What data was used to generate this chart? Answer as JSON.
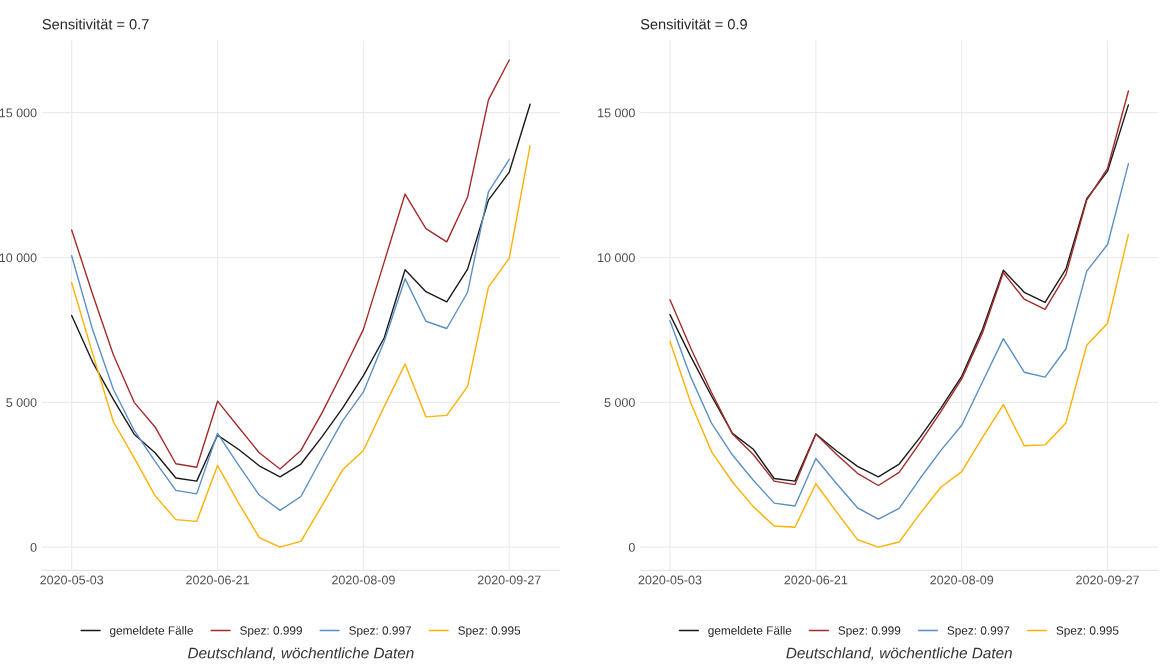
{
  "chart_data": [
    {
      "type": "line",
      "title": "Sensitivität = 0.7",
      "x": [
        "2020-05-03",
        "2020-05-10",
        "2020-05-17",
        "2020-05-24",
        "2020-05-31",
        "2020-06-07",
        "2020-06-14",
        "2020-06-21",
        "2020-06-28",
        "2020-07-05",
        "2020-07-12",
        "2020-07-19",
        "2020-07-26",
        "2020-08-02",
        "2020-08-09",
        "2020-08-16",
        "2020-08-23",
        "2020-08-30",
        "2020-09-06",
        "2020-09-13",
        "2020-09-20",
        "2020-09-27",
        "2020-10-04"
      ],
      "series": [
        {
          "name": "gemeldete Fälle",
          "color": "#1a1a1a",
          "values": [
            8000,
            6400,
            5100,
            3900,
            3260,
            2390,
            2280,
            3870,
            3380,
            2810,
            2430,
            2870,
            3800,
            4800,
            5920,
            7230,
            9580,
            8820,
            8470,
            9600,
            11980,
            12950,
            15290
          ]
        },
        {
          "name": "Spez: 0.999",
          "color": "#a52a2a",
          "values": [
            10950,
            8740,
            6640,
            5000,
            4150,
            2880,
            2760,
            5040,
            4150,
            3260,
            2700,
            3340,
            4620,
            6040,
            7520,
            9850,
            12190,
            11000,
            10540,
            12090,
            15440,
            16820,
            null
          ]
        },
        {
          "name": "Spez: 0.997",
          "color": "#5b8fc4",
          "values": [
            10060,
            7520,
            5450,
            4030,
            2960,
            1960,
            1840,
            3930,
            2840,
            1800,
            1270,
            1750,
            3080,
            4360,
            5360,
            7110,
            9270,
            7800,
            7550,
            8800,
            12270,
            13390,
            null
          ]
        },
        {
          "name": "Spez: 0.995",
          "color": "#ffb000",
          "values": [
            9130,
            6700,
            4330,
            3080,
            1780,
            950,
            890,
            2820,
            1540,
            330,
            0,
            200,
            1420,
            2670,
            3340,
            4860,
            6320,
            4500,
            4550,
            5550,
            8980,
            9980,
            13860
          ]
        }
      ],
      "xlim": [
        "2020-04-23",
        "2020-10-14"
      ],
      "xticks": [
        {
          "value": "2020-05-03",
          "label": "2020-05-03"
        },
        {
          "value": "2020-06-21",
          "label": "2020-06-21"
        },
        {
          "value": "2020-08-09",
          "label": "2020-08-09"
        },
        {
          "value": "2020-09-27",
          "label": "2020-09-27"
        }
      ],
      "ylim": [
        -800,
        17500
      ],
      "yticks": [
        {
          "value": 0,
          "label": "0"
        },
        {
          "value": 5000,
          "label": "5 000"
        },
        {
          "value": 10000,
          "label": "10 000"
        },
        {
          "value": 15000,
          "label": "15 000"
        }
      ],
      "grid": true,
      "legend": "bottom",
      "line_style": "solid",
      "marker": "none",
      "annotations": [
        "Deutschland, wöchentliche Daten"
      ]
    },
    {
      "type": "line",
      "title": "Sensitivität = 0.9",
      "x": [
        "2020-05-03",
        "2020-05-10",
        "2020-05-17",
        "2020-05-24",
        "2020-05-31",
        "2020-06-07",
        "2020-06-14",
        "2020-06-21",
        "2020-06-28",
        "2020-07-05",
        "2020-07-12",
        "2020-07-19",
        "2020-07-26",
        "2020-08-02",
        "2020-08-09",
        "2020-08-16",
        "2020-08-23",
        "2020-08-30",
        "2020-09-06",
        "2020-09-13",
        "2020-09-20",
        "2020-09-27",
        "2020-10-04"
      ],
      "series": [
        {
          "name": "gemeldete Fälle",
          "color": "#1a1a1a",
          "values": [
            8030,
            6580,
            5210,
            3930,
            3380,
            2370,
            2280,
            3910,
            3320,
            2790,
            2430,
            2870,
            3790,
            4800,
            5900,
            7520,
            9560,
            8800,
            8450,
            9600,
            12030,
            12980,
            15270
          ]
        },
        {
          "name": "Spez: 0.999",
          "color": "#a52a2a",
          "values": [
            8540,
            6870,
            5330,
            3910,
            3200,
            2280,
            2160,
            3910,
            3200,
            2550,
            2130,
            2580,
            3610,
            4680,
            5810,
            7400,
            9480,
            8560,
            8210,
            9410,
            11980,
            13080,
            15750
          ]
        },
        {
          "name": "Spez: 0.997",
          "color": "#5b8fc4",
          "values": [
            7820,
            5870,
            4270,
            3180,
            2310,
            1520,
            1420,
            3060,
            2190,
            1360,
            970,
            1340,
            2370,
            3340,
            4210,
            5710,
            7200,
            6040,
            5870,
            6850,
            9530,
            10450,
            13240
          ]
        },
        {
          "name": "Spez: 0.995",
          "color": "#ffb000",
          "values": [
            7110,
            4980,
            3290,
            2250,
            1400,
            730,
            690,
            2190,
            1210,
            260,
            0,
            180,
            1160,
            2070,
            2610,
            3790,
            4920,
            3500,
            3530,
            4290,
            6970,
            7730,
            10800
          ]
        }
      ],
      "xlim": [
        "2020-04-23",
        "2020-10-14"
      ],
      "xticks": [
        {
          "value": "2020-05-03",
          "label": "2020-05-03"
        },
        {
          "value": "2020-06-21",
          "label": "2020-06-21"
        },
        {
          "value": "2020-08-09",
          "label": "2020-08-09"
        },
        {
          "value": "2020-09-27",
          "label": "2020-09-27"
        }
      ],
      "ylim": [
        -800,
        17500
      ],
      "yticks": [
        {
          "value": 0,
          "label": "0"
        },
        {
          "value": 5000,
          "label": "5 000"
        },
        {
          "value": 10000,
          "label": "10 000"
        },
        {
          "value": 15000,
          "label": "15 000"
        }
      ],
      "grid": true,
      "legend": "bottom",
      "line_style": "solid",
      "marker": "none",
      "annotations": [
        "Deutschland, wöchentliche Daten"
      ]
    }
  ]
}
